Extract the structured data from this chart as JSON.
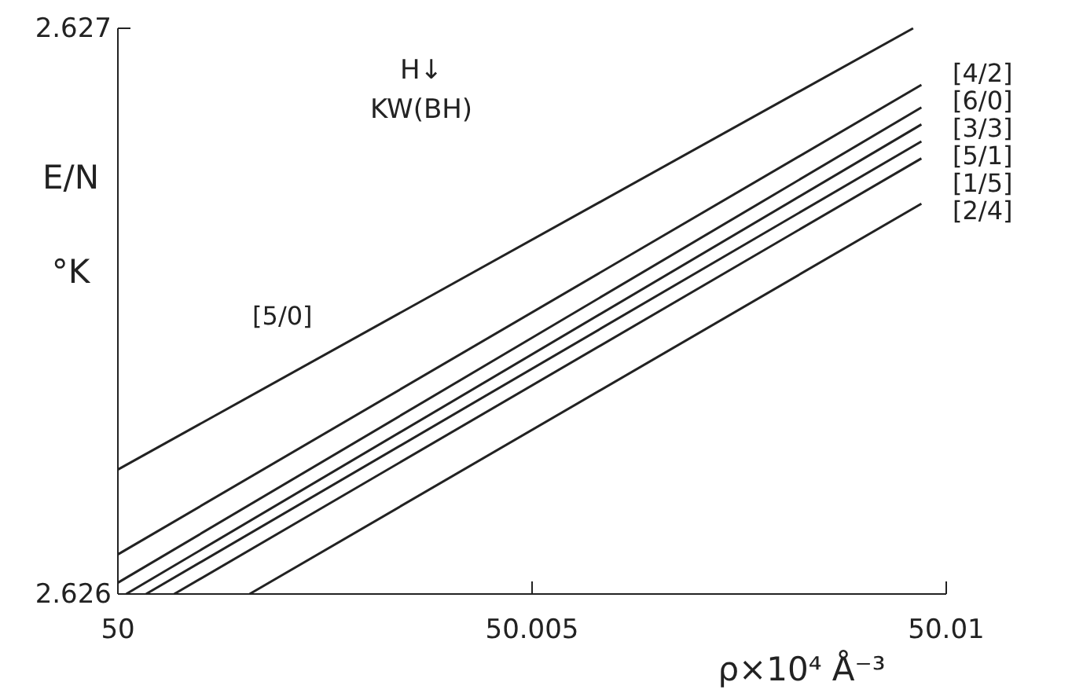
{
  "chart_data": {
    "type": "line",
    "xlabel": "ρ×10⁴ Å⁻³",
    "ylabel": "E/N °K",
    "xlim": [
      50,
      50.01
    ],
    "xticks": [
      50,
      50.005,
      50.01
    ],
    "ylim": [
      2.626,
      2.627
    ],
    "yticks": [
      2.626,
      2.627
    ],
    "grid": false,
    "legend": false,
    "marker": "none",
    "line_style": "solid",
    "annotations": [
      "H↓",
      "KW(BH)"
    ],
    "series": [
      {
        "name": "[5/0]",
        "color": "#222222",
        "x": [
          50,
          50.0096
        ],
        "values": [
          2.62622,
          2.627
        ]
      },
      {
        "name": "[4/2]",
        "color": "#222222",
        "x": [
          50,
          50.0097
        ],
        "values": [
          2.62607,
          2.6269
        ]
      },
      {
        "name": "[6/0]",
        "color": "#222222",
        "x": [
          50,
          50.0097
        ],
        "values": [
          2.62602,
          2.62686
        ]
      },
      {
        "name": "[3/3]",
        "color": "#222222",
        "x": [
          50.0001,
          50.0097
        ],
        "values": [
          2.626,
          2.62683
        ]
      },
      {
        "name": "[5/1]",
        "color": "#222222",
        "x": [
          50.00034,
          50.0097
        ],
        "values": [
          2.626,
          2.6268
        ]
      },
      {
        "name": "[1/5]",
        "color": "#222222",
        "x": [
          50.00068,
          50.0097
        ],
        "values": [
          2.626,
          2.62677
        ]
      },
      {
        "name": "[2/4]",
        "color": "#222222",
        "x": [
          50.00159,
          50.0097
        ],
        "values": [
          2.626,
          2.62669
        ]
      }
    ]
  }
}
